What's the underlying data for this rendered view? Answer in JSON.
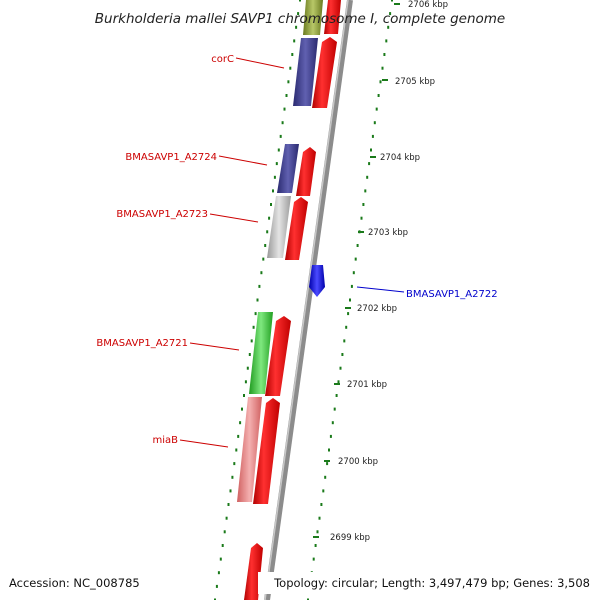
{
  "title": "Burkholderia mallei SAVP1 chromosome I, complete genome",
  "footer": {
    "accession": "Accession: NC_008785",
    "topology": "Topology: circular; Length: 3,497,479 bp; Genes: 3,508"
  },
  "ruler": {
    "ticks": [
      "2706 kbp",
      "2705 kbp",
      "2704 kbp",
      "2703 kbp",
      "2702 kbp",
      "2701 kbp",
      "2700 kbp",
      "2699 kbp"
    ]
  },
  "gene_labels": [
    {
      "text": "corC",
      "color": "#cc0000"
    },
    {
      "text": "BMASAVP1_A2724",
      "color": "#cc0000"
    },
    {
      "text": "BMASAVP1_A2723",
      "color": "#cc0000"
    },
    {
      "text": "BMASAVP1_A2722",
      "color": "#0000cc"
    },
    {
      "text": "BMASAVP1_A2721",
      "color": "#cc0000"
    },
    {
      "text": "miaB",
      "color": "#cc0000"
    }
  ],
  "colors": {
    "cds_red": "#ff0000",
    "cog_navy": "#3a3a8c",
    "cog_gray": "#bdbdbd",
    "cog_green": "#33cc33",
    "cog_pink": "#e88080",
    "cog_olive": "#8a9a3a",
    "reverse_blue": "#0000ff",
    "backbone": "#8c8c8c",
    "dots": "#1a7a1a"
  }
}
